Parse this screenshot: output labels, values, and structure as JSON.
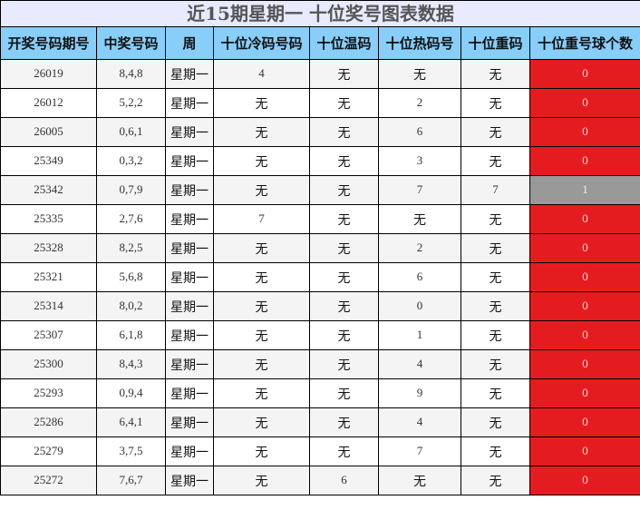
{
  "title": "近15期星期一 十位奖号图表数据",
  "headers": [
    "开奖号码期号",
    "中奖号码",
    "周",
    "十位冷码号码",
    "十位温码",
    "十位热码号",
    "十位重码",
    "十位重号球个数"
  ],
  "colors": {
    "count_zero": "#e51c1f",
    "count_hit": "#999999",
    "header": "#87cefa",
    "title_bg": "#e8eaff"
  },
  "rows": [
    [
      "26019",
      "8,4,8",
      "星期一",
      "4",
      "无",
      "无",
      "无",
      "0"
    ],
    [
      "26012",
      "5,2,2",
      "星期一",
      "无",
      "无",
      "2",
      "无",
      "0"
    ],
    [
      "26005",
      "0,6,1",
      "星期一",
      "无",
      "无",
      "6",
      "无",
      "0"
    ],
    [
      "25349",
      "0,3,2",
      "星期一",
      "无",
      "无",
      "3",
      "无",
      "0"
    ],
    [
      "25342",
      "0,7,9",
      "星期一",
      "无",
      "无",
      "7",
      "7",
      "1"
    ],
    [
      "25335",
      "2,7,6",
      "星期一",
      "7",
      "无",
      "无",
      "无",
      "0"
    ],
    [
      "25328",
      "8,2,5",
      "星期一",
      "无",
      "无",
      "2",
      "无",
      "0"
    ],
    [
      "25321",
      "5,6,8",
      "星期一",
      "无",
      "无",
      "6",
      "无",
      "0"
    ],
    [
      "25314",
      "8,0,2",
      "星期一",
      "无",
      "无",
      "0",
      "无",
      "0"
    ],
    [
      "25307",
      "6,1,8",
      "星期一",
      "无",
      "无",
      "1",
      "无",
      "0"
    ],
    [
      "25300",
      "8,4,3",
      "星期一",
      "无",
      "无",
      "4",
      "无",
      "0"
    ],
    [
      "25293",
      "0,9,4",
      "星期一",
      "无",
      "无",
      "9",
      "无",
      "0"
    ],
    [
      "25286",
      "6,4,1",
      "星期一",
      "无",
      "无",
      "4",
      "无",
      "0"
    ],
    [
      "25279",
      "3,7,5",
      "星期一",
      "无",
      "无",
      "7",
      "无",
      "0"
    ],
    [
      "25272",
      "7,6,7",
      "星期一",
      "无",
      "6",
      "无",
      "无",
      "0"
    ]
  ]
}
